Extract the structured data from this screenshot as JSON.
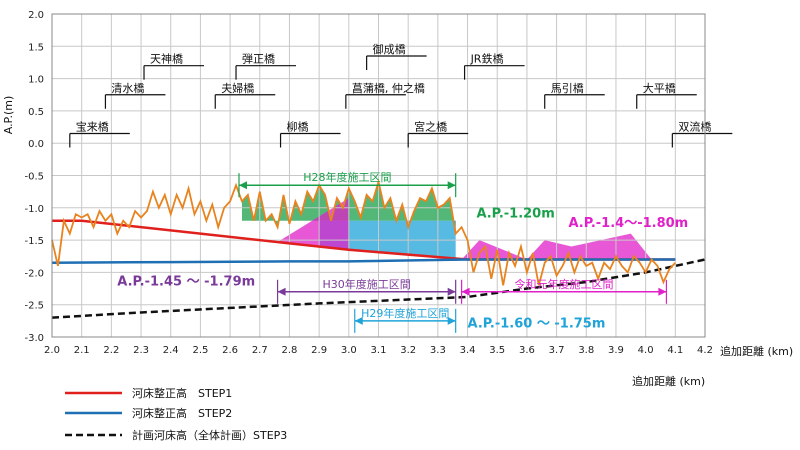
{
  "chart_data": {
    "type": "line",
    "xlabel": "追加距離 (km)",
    "ylabel": "A.P.(m)",
    "xlim": [
      2.0,
      4.2
    ],
    "ylim": [
      -3.0,
      2.0
    ],
    "grid": true,
    "x_ticks": [
      "2.0",
      "2.1",
      "2.2",
      "2.3",
      "2.4",
      "2.5",
      "2.6",
      "2.7",
      "2.8",
      "2.9",
      "3.0",
      "3.1",
      "3.2",
      "3.3",
      "3.4",
      "3.5",
      "3.6",
      "3.7",
      "3.8",
      "3.9",
      "4.0",
      "4.1",
      "4.2"
    ],
    "y_ticks": [
      "2.0",
      "1.5",
      "1.0",
      "0.5",
      "0.0",
      "-0.5",
      "-1.0",
      "-1.5",
      "-2.0",
      "-2.5",
      "-3.0"
    ],
    "xlabel_below": "追加距離 (km)",
    "bridges": [
      {
        "name": "宝来橋",
        "x": 2.06,
        "level": 0.15
      },
      {
        "name": "清水橋",
        "x": 2.18,
        "level": 0.75
      },
      {
        "name": "天神橋",
        "x": 2.31,
        "level": 1.2
      },
      {
        "name": "夫婦橋",
        "x": 2.55,
        "level": 0.75
      },
      {
        "name": "弾正橋",
        "x": 2.62,
        "level": 1.2
      },
      {
        "name": "柳橋",
        "x": 2.77,
        "level": 0.15
      },
      {
        "name": "菖蒲橋, 仲之橋",
        "x": 2.99,
        "level": 0.75
      },
      {
        "name": "御成橋",
        "x": 3.06,
        "level": 1.35
      },
      {
        "name": "宮之橋",
        "x": 3.2,
        "level": 0.15
      },
      {
        "name": "JR鉄橋",
        "x": 3.39,
        "level": 1.2
      },
      {
        "name": "馬引橋",
        "x": 3.66,
        "level": 0.75
      },
      {
        "name": "大平橋",
        "x": 3.97,
        "level": 0.75
      },
      {
        "name": "双流橋",
        "x": 4.09,
        "level": 0.15
      }
    ],
    "series": [
      {
        "name": "河床整正高　STEP1",
        "color": "#e0201c",
        "style": "solid",
        "x": [
          2.0,
          2.1,
          2.4,
          2.8,
          3.0,
          3.4,
          3.6,
          4.1
        ],
        "y": [
          -1.2,
          -1.2,
          -1.35,
          -1.55,
          -1.65,
          -1.8,
          -1.8,
          -1.8
        ]
      },
      {
        "name": "河床整正高　STEP2",
        "color": "#1f6fb4",
        "style": "solid",
        "x": [
          2.0,
          2.4,
          2.8,
          3.0,
          3.4,
          3.6,
          4.1
        ],
        "y": [
          -1.85,
          -1.84,
          -1.83,
          -1.83,
          -1.8,
          -1.8,
          -1.8
        ]
      },
      {
        "name": "計画河床高（全体計画）STEP3",
        "color": "#111111",
        "style": "dashed",
        "x": [
          2.0,
          2.3,
          2.6,
          2.9,
          3.2,
          3.4,
          3.6,
          3.8,
          4.0,
          4.2
        ],
        "y": [
          -2.7,
          -2.62,
          -2.55,
          -2.48,
          -2.42,
          -2.38,
          -2.25,
          -2.15,
          -2.0,
          -1.8
        ]
      },
      {
        "name": "",
        "color": "#e8831e",
        "style": "solid",
        "x": [
          2.0,
          2.02,
          2.04,
          2.06,
          2.08,
          2.1,
          2.12,
          2.14,
          2.16,
          2.18,
          2.2,
          2.22,
          2.24,
          2.26,
          2.28,
          2.3,
          2.32,
          2.34,
          2.36,
          2.38,
          2.4,
          2.42,
          2.44,
          2.46,
          2.48,
          2.5,
          2.52,
          2.54,
          2.56,
          2.58,
          2.6,
          2.62,
          2.64,
          2.66,
          2.68,
          2.7,
          2.72,
          2.74,
          2.76,
          2.78,
          2.8,
          2.82,
          2.84,
          2.86,
          2.88,
          2.9,
          2.92,
          2.94,
          2.96,
          2.98,
          3.0,
          3.02,
          3.04,
          3.06,
          3.08,
          3.1,
          3.12,
          3.14,
          3.16,
          3.18,
          3.2,
          3.22,
          3.24,
          3.26,
          3.28,
          3.3,
          3.32,
          3.34,
          3.36,
          3.38,
          3.4,
          3.42,
          3.44,
          3.46,
          3.48,
          3.5,
          3.52,
          3.54,
          3.56,
          3.58,
          3.6,
          3.62,
          3.64,
          3.66,
          3.68,
          3.7,
          3.72,
          3.74,
          3.76,
          3.78,
          3.8,
          3.82,
          3.84,
          3.86,
          3.88,
          3.9,
          3.92,
          3.94,
          3.96,
          3.98,
          4.0,
          4.02,
          4.04,
          4.06,
          4.08,
          4.1
        ],
        "y": [
          -1.5,
          -1.9,
          -1.2,
          -1.4,
          -1.1,
          -1.15,
          -1.1,
          -1.3,
          -1.05,
          -1.2,
          -1.1,
          -1.4,
          -1.2,
          -1.3,
          -1.05,
          -1.15,
          -1.05,
          -0.75,
          -1.0,
          -0.8,
          -1.1,
          -0.8,
          -1.0,
          -0.7,
          -1.1,
          -0.9,
          -1.2,
          -0.95,
          -1.3,
          -1.0,
          -0.9,
          -0.65,
          -0.9,
          -0.8,
          -1.2,
          -0.75,
          -1.2,
          -1.1,
          -1.3,
          -0.8,
          -1.25,
          -0.9,
          -1.1,
          -0.75,
          -0.9,
          -0.65,
          -0.8,
          -1.2,
          -0.85,
          -1.0,
          -0.7,
          -0.9,
          -1.15,
          -0.8,
          -0.9,
          -0.6,
          -1.0,
          -0.85,
          -1.2,
          -0.95,
          -1.3,
          -1.05,
          -0.85,
          -0.9,
          -0.7,
          -1.0,
          -0.95,
          -0.85,
          -1.4,
          -1.3,
          -1.5,
          -2.0,
          -1.7,
          -1.6,
          -2.1,
          -1.65,
          -2.2,
          -1.7,
          -1.9,
          -1.6,
          -2.0,
          -1.7,
          -2.2,
          -1.85,
          -1.75,
          -2.05,
          -1.9,
          -1.7,
          -2.0,
          -1.75,
          -1.9,
          -1.85,
          -2.1,
          -1.85,
          -1.95,
          -1.75,
          -1.9,
          -2.0,
          -1.75,
          -1.85,
          -2.0,
          -1.8,
          -1.9,
          -2.15,
          -1.95,
          -1.85
        ]
      }
    ],
    "regions": [
      {
        "label": "H28年度施工区間",
        "x_start": 2.63,
        "x_end": 3.36,
        "y": -0.65,
        "color": "#1aa04a"
      },
      {
        "label": "H30年度施工区間",
        "x_start": 2.76,
        "x_end": 3.36,
        "y": -2.3,
        "color": "#7a3a9a"
      },
      {
        "label": "H29年度施工区間",
        "x_start": 3.02,
        "x_end": 3.36,
        "y": -2.75,
        "color": "#1fa3d8"
      },
      {
        "label": "令和元年度施工区間",
        "x_start": 3.38,
        "x_end": 4.07,
        "y": -2.3,
        "color": "#e020c8"
      }
    ],
    "annotations": [
      {
        "text": "A.P.-1.20m",
        "x": 3.43,
        "y": -1.15,
        "color": "#1aa04a"
      },
      {
        "text": "A.P.-1.4～-1.80m",
        "x": 3.74,
        "y": -1.3,
        "color": "#e020c8"
      },
      {
        "text": "A.P.-1.45 ～ -1.79m",
        "x": 2.22,
        "y": -2.2,
        "color": "#7a3a9a"
      },
      {
        "text": "A.P.-1.60 ～ -1.75m",
        "x": 3.4,
        "y": -2.85,
        "color": "#1fa3d8"
      }
    ],
    "legend": [
      {
        "label": "河床整正高　STEP1",
        "color": "#e0201c",
        "style": "solid"
      },
      {
        "label": "河床整正高　STEP2",
        "color": "#1f6fb4",
        "style": "solid"
      },
      {
        "label": "計画河床高（全体計画）STEP3",
        "color": "#111111",
        "style": "dashed"
      }
    ],
    "legend_position": "bottom-left"
  }
}
